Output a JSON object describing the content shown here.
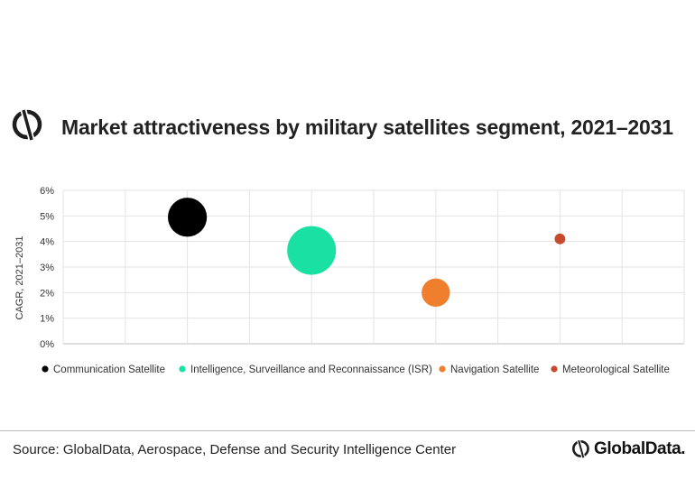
{
  "header": {
    "title": "Market attractiveness by military satellites segment, 2021–2031"
  },
  "footer": {
    "source": "Source: GlobalData, Aerospace, Defense and Security Intelligence Center",
    "brand": "GlobalData."
  },
  "colors": {
    "communication": "#000000",
    "isr": "#19e0a3",
    "navigation": "#f07f2d",
    "meteorological": "#c64a2c"
  },
  "chart_data": {
    "type": "scatter",
    "title": "Market attractiveness by military satellites segment, 2021–2031",
    "xlabel": "",
    "ylabel": "CAGR, 2021–2031",
    "ylim": [
      0,
      6
    ],
    "y_ticks": [
      "0%",
      "1%",
      "2%",
      "3%",
      "4%",
      "5%",
      "6%"
    ],
    "x_tick_labels": false,
    "grid": true,
    "legend_position": "bottom",
    "series": [
      {
        "name": "Communication Satellite",
        "x": 2,
        "y": 4.95,
        "relative_size": 0.8,
        "color": "#000000"
      },
      {
        "name": "Intelligence, Surveillance and Reconnaissance (ISR)",
        "x": 4,
        "y": 3.65,
        "relative_size": 1.0,
        "color": "#19e0a3"
      },
      {
        "name": "Navigation Satellite",
        "x": 6,
        "y": 2.0,
        "relative_size": 0.58,
        "color": "#f07f2d"
      },
      {
        "name": "Meteorological Satellite",
        "x": 8,
        "y": 4.1,
        "relative_size": 0.22,
        "color": "#c64a2c"
      }
    ]
  }
}
